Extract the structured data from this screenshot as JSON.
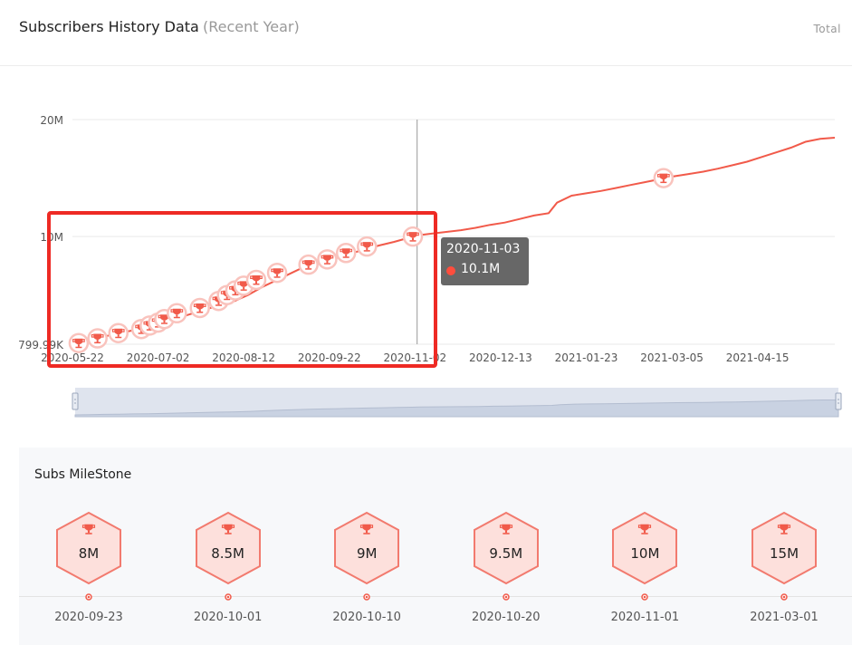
{
  "header": {
    "title": "Subscribers History Data",
    "subtitle": "(Recent Year)",
    "total_label": "Total"
  },
  "colors": {
    "line": "#f15a4a",
    "milestone_fill": "#fde0dc",
    "milestone_stroke": "#f27a6e",
    "tooltip_bg": "#5a5a5a",
    "slider_bg": "#dfe4ee",
    "highlight": "#ee2a24"
  },
  "chart_data": {
    "type": "line",
    "title": "",
    "xlabel": "",
    "ylabel": "",
    "ylim": [
      799990,
      20000000
    ],
    "yticks": [
      {
        "value": 799990,
        "label": "799.99K"
      },
      {
        "value": 10000000,
        "label": "10M"
      },
      {
        "value": 20000000,
        "label": "20M"
      }
    ],
    "xlim": [
      "2020-05-22",
      "2021-05-22"
    ],
    "xticks": [
      "2020-05-22",
      "2020-07-02",
      "2020-08-12",
      "2020-09-22",
      "2020-11-02",
      "2020-12-13",
      "2021-01-23",
      "2021-03-05",
      "2021-04-15"
    ],
    "series": [
      {
        "points": [
          [
            "2020-05-22",
            800000
          ],
          [
            "2020-05-29",
            1100000
          ],
          [
            "2020-06-05",
            1400000
          ],
          [
            "2020-06-12",
            1700000
          ],
          [
            "2020-06-19",
            1950000
          ],
          [
            "2020-06-26",
            2200000
          ],
          [
            "2020-07-03",
            2550000
          ],
          [
            "2020-07-10",
            2950000
          ],
          [
            "2020-07-17",
            3350000
          ],
          [
            "2020-07-24",
            3750000
          ],
          [
            "2020-07-31",
            4100000
          ],
          [
            "2020-08-07",
            4450000
          ],
          [
            "2020-08-14",
            5000000
          ],
          [
            "2020-08-21",
            5700000
          ],
          [
            "2020-08-28",
            6300000
          ],
          [
            "2020-09-04",
            6900000
          ],
          [
            "2020-09-11",
            7500000
          ],
          [
            "2020-09-18",
            7800000
          ],
          [
            "2020-09-25",
            8150000
          ],
          [
            "2020-10-02",
            8550000
          ],
          [
            "2020-10-09",
            8900000
          ],
          [
            "2020-10-16",
            9250000
          ],
          [
            "2020-10-23",
            9550000
          ],
          [
            "2020-10-30",
            9900000
          ],
          [
            "2020-11-03",
            10100000
          ],
          [
            "2020-11-10",
            10250000
          ],
          [
            "2020-11-17",
            10400000
          ],
          [
            "2020-11-24",
            10550000
          ],
          [
            "2020-12-01",
            10750000
          ],
          [
            "2020-12-08",
            11000000
          ],
          [
            "2020-12-15",
            11200000
          ],
          [
            "2020-12-22",
            11500000
          ],
          [
            "2020-12-29",
            11800000
          ],
          [
            "2021-01-05",
            12000000
          ],
          [
            "2021-01-09",
            12900000
          ],
          [
            "2021-01-16",
            13500000
          ],
          [
            "2021-01-23",
            13700000
          ],
          [
            "2021-01-30",
            13900000
          ],
          [
            "2021-02-06",
            14150000
          ],
          [
            "2021-02-13",
            14400000
          ],
          [
            "2021-02-20",
            14650000
          ],
          [
            "2021-02-27",
            14900000
          ],
          [
            "2021-03-06",
            15150000
          ],
          [
            "2021-03-13",
            15350000
          ],
          [
            "2021-03-20",
            15550000
          ],
          [
            "2021-03-27",
            15800000
          ],
          [
            "2021-04-03",
            16100000
          ],
          [
            "2021-04-10",
            16400000
          ],
          [
            "2021-04-17",
            16800000
          ],
          [
            "2021-04-24",
            17200000
          ],
          [
            "2021-05-01",
            17600000
          ],
          [
            "2021-05-08",
            18100000
          ],
          [
            "2021-05-15",
            18350000
          ],
          [
            "2021-05-22",
            18450000
          ]
        ]
      }
    ],
    "milestone_markers": [
      {
        "date": "2020-05-25",
        "value": 900000
      },
      {
        "date": "2020-06-03",
        "value": 1300000
      },
      {
        "date": "2020-06-13",
        "value": 1750000
      },
      {
        "date": "2020-06-24",
        "value": 2100000
      },
      {
        "date": "2020-06-28",
        "value": 2400000
      },
      {
        "date": "2020-07-02",
        "value": 2650000
      },
      {
        "date": "2020-07-05",
        "value": 2950000
      },
      {
        "date": "2020-07-11",
        "value": 3450000
      },
      {
        "date": "2020-07-22",
        "value": 3900000
      },
      {
        "date": "2020-07-31",
        "value": 4500000
      },
      {
        "date": "2020-08-04",
        "value": 5000000
      },
      {
        "date": "2020-08-08",
        "value": 5400000
      },
      {
        "date": "2020-08-12",
        "value": 5800000
      },
      {
        "date": "2020-08-18",
        "value": 6300000
      },
      {
        "date": "2020-08-28",
        "value": 6900000
      },
      {
        "date": "2020-09-12",
        "value": 7600000
      },
      {
        "date": "2020-09-21",
        "value": 8050000
      },
      {
        "date": "2020-09-30",
        "value": 8600000
      },
      {
        "date": "2020-10-10",
        "value": 9150000
      },
      {
        "date": "2020-11-01",
        "value": 10000000
      },
      {
        "date": "2021-03-01",
        "value": 15000000
      }
    ],
    "cursor": {
      "date": "2020-11-03"
    },
    "tooltip": {
      "date": "2020-11-03",
      "value_label": "10.1M"
    },
    "grid": "horizontal",
    "legend": "none"
  },
  "slider": {
    "range": [
      "2020-05-22",
      "2021-05-22"
    ],
    "start_fraction": 0,
    "end_fraction": 1
  },
  "milestones": {
    "title": "Subs MileStone",
    "items": [
      {
        "value": "8M",
        "date": "2020-09-23"
      },
      {
        "value": "8.5M",
        "date": "2020-10-01"
      },
      {
        "value": "9M",
        "date": "2020-10-10"
      },
      {
        "value": "9.5M",
        "date": "2020-10-20"
      },
      {
        "value": "10M",
        "date": "2020-11-01"
      },
      {
        "value": "15M",
        "date": "2021-03-01"
      }
    ]
  }
}
